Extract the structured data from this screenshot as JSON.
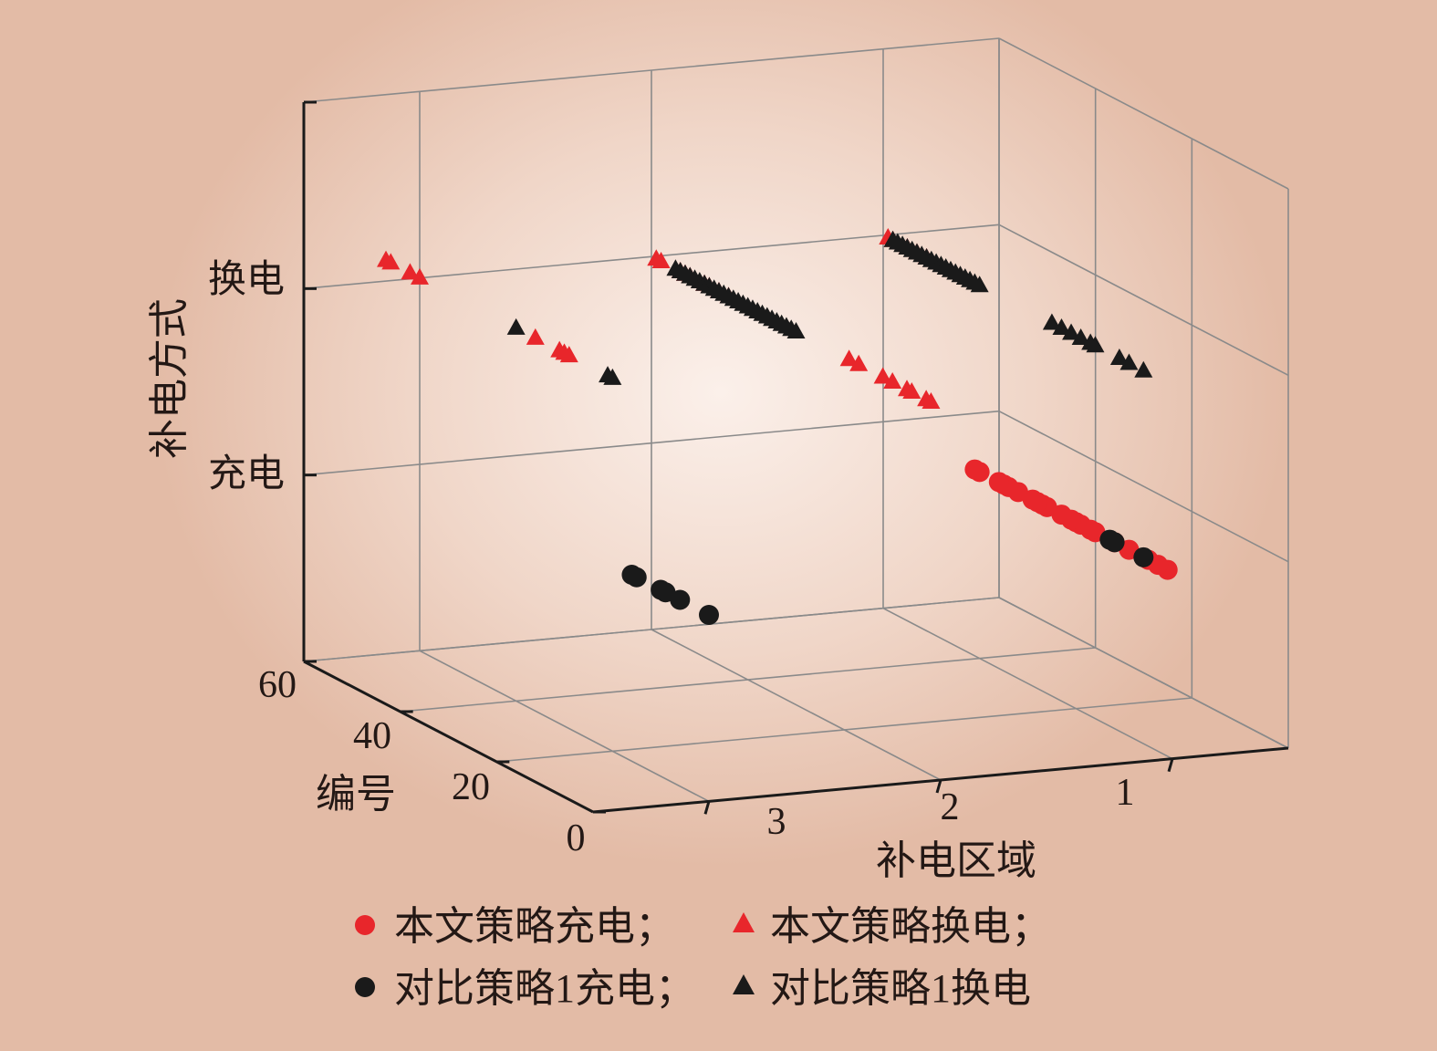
{
  "chart_data": {
    "type": "scatter",
    "title": "",
    "xlabel": "补电区域",
    "ylabel": "编号",
    "zlabel": "补电方式",
    "x_ticks": [
      "1",
      "2",
      "3"
    ],
    "y_ticks": [
      "0",
      "20",
      "40",
      "60"
    ],
    "z_ticks": [
      "充电",
      "换电"
    ],
    "xlim": [
      0.5,
      3.5
    ],
    "ylim": [
      0,
      60
    ],
    "zlim": [
      -1,
      2
    ],
    "grid": true,
    "legend_position": "bottom",
    "series": [
      {
        "name": "本文策略充电；",
        "marker": "circle",
        "color": "#e8262b",
        "points": [
          [
            1,
            1,
            0
          ],
          [
            1,
            3,
            0
          ],
          [
            1,
            5,
            0
          ],
          [
            1,
            9,
            0
          ],
          [
            1,
            12,
            0
          ],
          [
            1,
            16,
            0
          ],
          [
            1,
            17,
            0
          ],
          [
            1,
            19,
            0
          ],
          [
            1,
            20,
            0
          ],
          [
            1,
            21,
            0
          ],
          [
            1,
            23,
            0
          ],
          [
            1,
            26,
            0
          ],
          [
            1,
            27,
            0
          ],
          [
            1,
            28,
            0
          ],
          [
            1,
            29,
            0
          ],
          [
            1,
            32,
            0
          ],
          [
            1,
            34,
            0
          ],
          [
            1,
            35,
            0
          ],
          [
            1,
            36,
            0
          ],
          [
            1,
            40,
            0
          ],
          [
            1,
            41,
            0
          ]
        ]
      },
      {
        "name": "本文策略换电；",
        "marker": "triangle",
        "color": "#e8262b",
        "points": [
          [
            2,
            2,
            1
          ],
          [
            2,
            3,
            1
          ],
          [
            2,
            6,
            1
          ],
          [
            2,
            7,
            1
          ],
          [
            2,
            10,
            1
          ],
          [
            2,
            12,
            1
          ],
          [
            2,
            17,
            1
          ],
          [
            2,
            19,
            1
          ],
          [
            1,
            51,
            1
          ],
          [
            1,
            53,
            1
          ],
          [
            1,
            55,
            1
          ],
          [
            1,
            58,
            1
          ],
          [
            1,
            59,
            1
          ],
          [
            2,
            44,
            1
          ],
          [
            2,
            46,
            1
          ],
          [
            2,
            48,
            1
          ],
          [
            2,
            49,
            1
          ],
          [
            2,
            52,
            1
          ],
          [
            2,
            53,
            1
          ],
          [
            2,
            54,
            1
          ],
          [
            2,
            58,
            1
          ],
          [
            2,
            59,
            1
          ],
          [
            3,
            29,
            1
          ],
          [
            3,
            30,
            1
          ],
          [
            3,
            31,
            1
          ],
          [
            3,
            36,
            1
          ],
          [
            3,
            60,
            1
          ],
          [
            3,
            62,
            1
          ],
          [
            3,
            66,
            1
          ],
          [
            3,
            67,
            1
          ]
        ]
      },
      {
        "name": "对比策略1充电；",
        "marker": "circle",
        "color": "#1a1a1a",
        "points": [
          [
            1,
            6,
            0
          ],
          [
            1,
            12,
            0
          ],
          [
            1,
            13,
            0
          ],
          [
            3,
            0,
            0
          ],
          [
            3,
            6,
            0
          ],
          [
            3,
            9,
            0
          ],
          [
            3,
            10,
            0
          ],
          [
            3,
            15,
            0
          ],
          [
            3,
            16,
            0
          ]
        ]
      },
      {
        "name": "对比策略1换电",
        "marker": "triangle",
        "color": "#1a1a1a",
        "points": [
          [
            1,
            6,
            1
          ],
          [
            1,
            9,
            1
          ],
          [
            1,
            11,
            1
          ],
          [
            1,
            16,
            1
          ],
          [
            1,
            17,
            1
          ],
          [
            1,
            19,
            1
          ],
          [
            1,
            21,
            1
          ],
          [
            1,
            23,
            1
          ],
          [
            1,
            25,
            1
          ],
          [
            1,
            40,
            1
          ],
          [
            1,
            41,
            1
          ],
          [
            1,
            42,
            1
          ],
          [
            1,
            43,
            1
          ],
          [
            1,
            44,
            1
          ],
          [
            1,
            45,
            1
          ],
          [
            1,
            46,
            1
          ],
          [
            1,
            47,
            1
          ],
          [
            1,
            48,
            1
          ],
          [
            1,
            49,
            1
          ],
          [
            1,
            50,
            1
          ],
          [
            1,
            51,
            1
          ],
          [
            1,
            52,
            1
          ],
          [
            1,
            53,
            1
          ],
          [
            1,
            54,
            1
          ],
          [
            1,
            55,
            1
          ],
          [
            1,
            56,
            1
          ],
          [
            1,
            57,
            1
          ],
          [
            1,
            58,
            1
          ],
          [
            2,
            30,
            1
          ],
          [
            2,
            31,
            1
          ],
          [
            2,
            32,
            1
          ],
          [
            2,
            33,
            1
          ],
          [
            2,
            34,
            1
          ],
          [
            2,
            35,
            1
          ],
          [
            2,
            36,
            1
          ],
          [
            2,
            37,
            1
          ],
          [
            2,
            38,
            1
          ],
          [
            2,
            39,
            1
          ],
          [
            2,
            40,
            1
          ],
          [
            2,
            41,
            1
          ],
          [
            2,
            42,
            1
          ],
          [
            2,
            43,
            1
          ],
          [
            2,
            44,
            1
          ],
          [
            2,
            45,
            1
          ],
          [
            2,
            46,
            1
          ],
          [
            2,
            47,
            1
          ],
          [
            2,
            48,
            1
          ],
          [
            2,
            49,
            1
          ],
          [
            2,
            50,
            1
          ],
          [
            2,
            51,
            1
          ],
          [
            2,
            52,
            1
          ],
          [
            2,
            53,
            1
          ],
          [
            2,
            54,
            1
          ],
          [
            2,
            55,
            1
          ],
          [
            3,
            20,
            1
          ],
          [
            3,
            21,
            1
          ],
          [
            3,
            40,
            1
          ]
        ]
      }
    ]
  }
}
